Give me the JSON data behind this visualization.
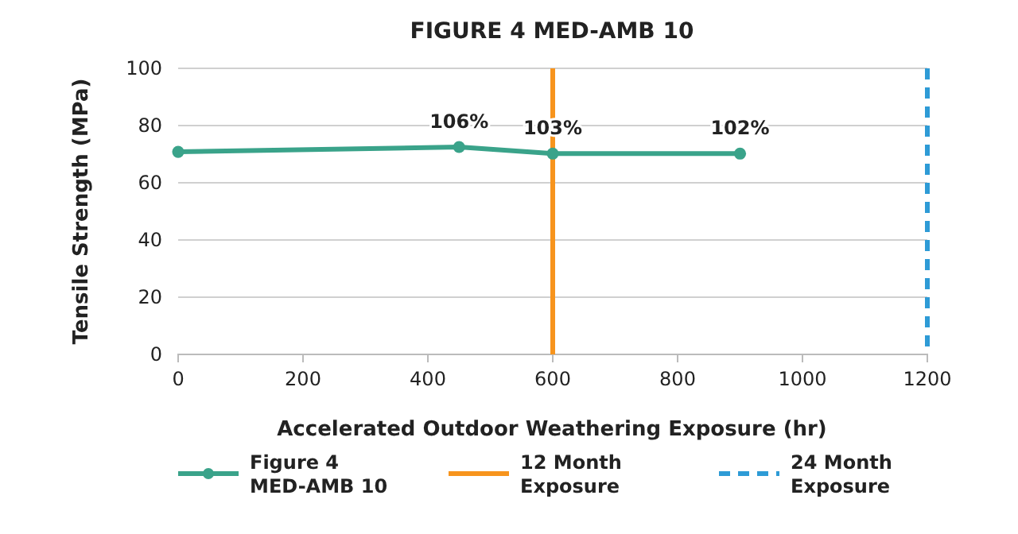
{
  "chart_data": {
    "type": "line",
    "title": "FIGURE 4 MED-AMB 10",
    "xlabel": "Accelerated Outdoor Weathering Exposure (hr)",
    "ylabel": "Tensile Strength (MPa)",
    "x": [
      0,
      450,
      600,
      900
    ],
    "series": [
      {
        "name": "Figure 4 MED-AMB 10",
        "color": "#3aa38a",
        "values": [
          70.8,
          72.5,
          70.2,
          70.2
        ]
      }
    ],
    "annotations": [
      {
        "text": "106%",
        "x": 450,
        "y": 72.5
      },
      {
        "text": "103%",
        "x": 600,
        "y": 70.2
      },
      {
        "text": "102%",
        "x": 900,
        "y": 70.2
      }
    ],
    "xlim": [
      0,
      1200
    ],
    "xticks": [
      0,
      200,
      400,
      600,
      800,
      1000,
      1200
    ],
    "ylim": [
      0,
      100
    ],
    "yticks": [
      0,
      20,
      40,
      60,
      80,
      100
    ],
    "ref_lines": [
      {
        "axis": "x",
        "value": 600,
        "label": "12 Month Exposure",
        "color": "#f7941d",
        "line_style": "solid"
      },
      {
        "axis": "x",
        "value": 1200,
        "label": "24 Month Exposure",
        "color": "#2e9bd6",
        "line_style": "dashed"
      }
    ],
    "grid": "y",
    "legend": "bottom",
    "marker": "circle",
    "line_style": "solid"
  }
}
